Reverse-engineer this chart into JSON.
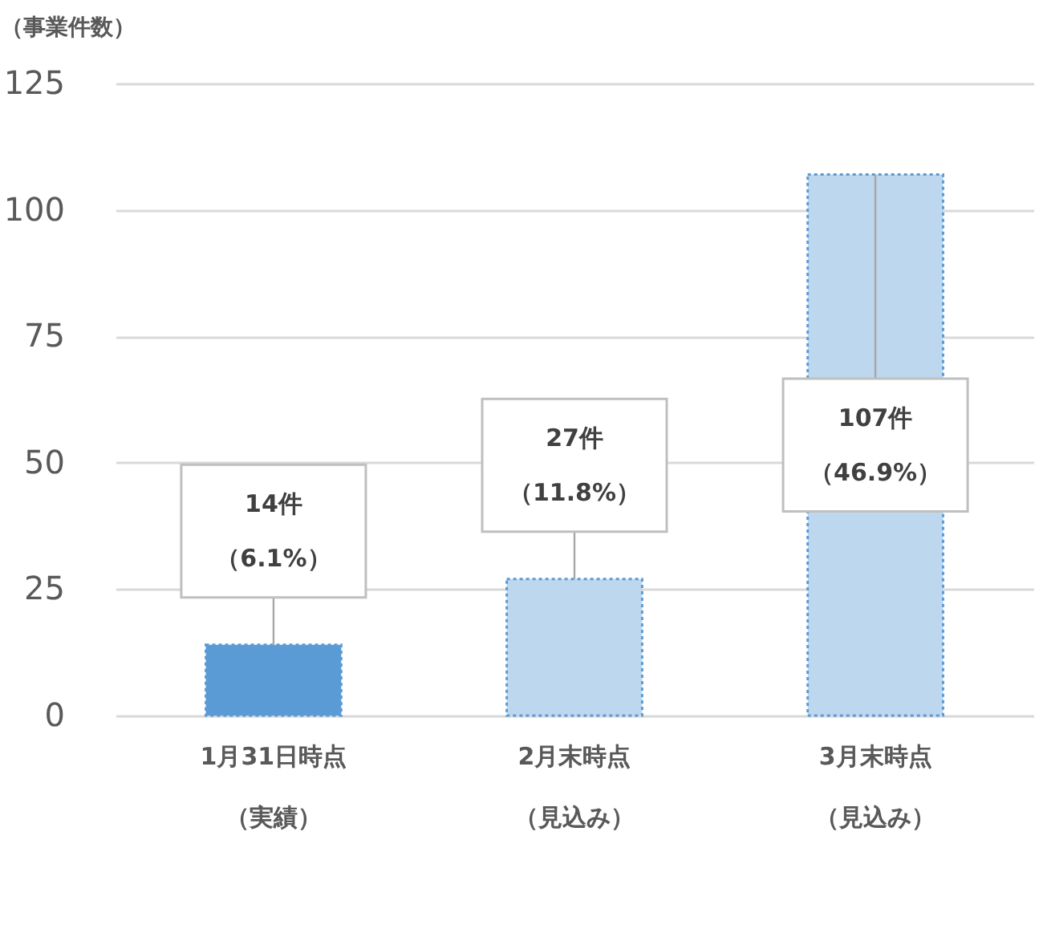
{
  "chart_data": {
    "type": "bar",
    "ylabel": "（事業件数）",
    "categories": [
      "1月31日時点（実績）",
      "2月末時点（見込み）",
      "3月末時点（見込み）"
    ],
    "values": [
      14,
      27,
      107
    ],
    "colors": [
      "#5b9bd5",
      "#bdd7ee",
      "#bdd7ee"
    ],
    "value_labels": [
      "14件（6.1%）",
      "27件（11.8%）",
      "107件（46.9%）"
    ],
    "ylim": [
      0,
      125
    ],
    "yticks": [
      0,
      25,
      50,
      75,
      100,
      125
    ],
    "grid": "y"
  }
}
